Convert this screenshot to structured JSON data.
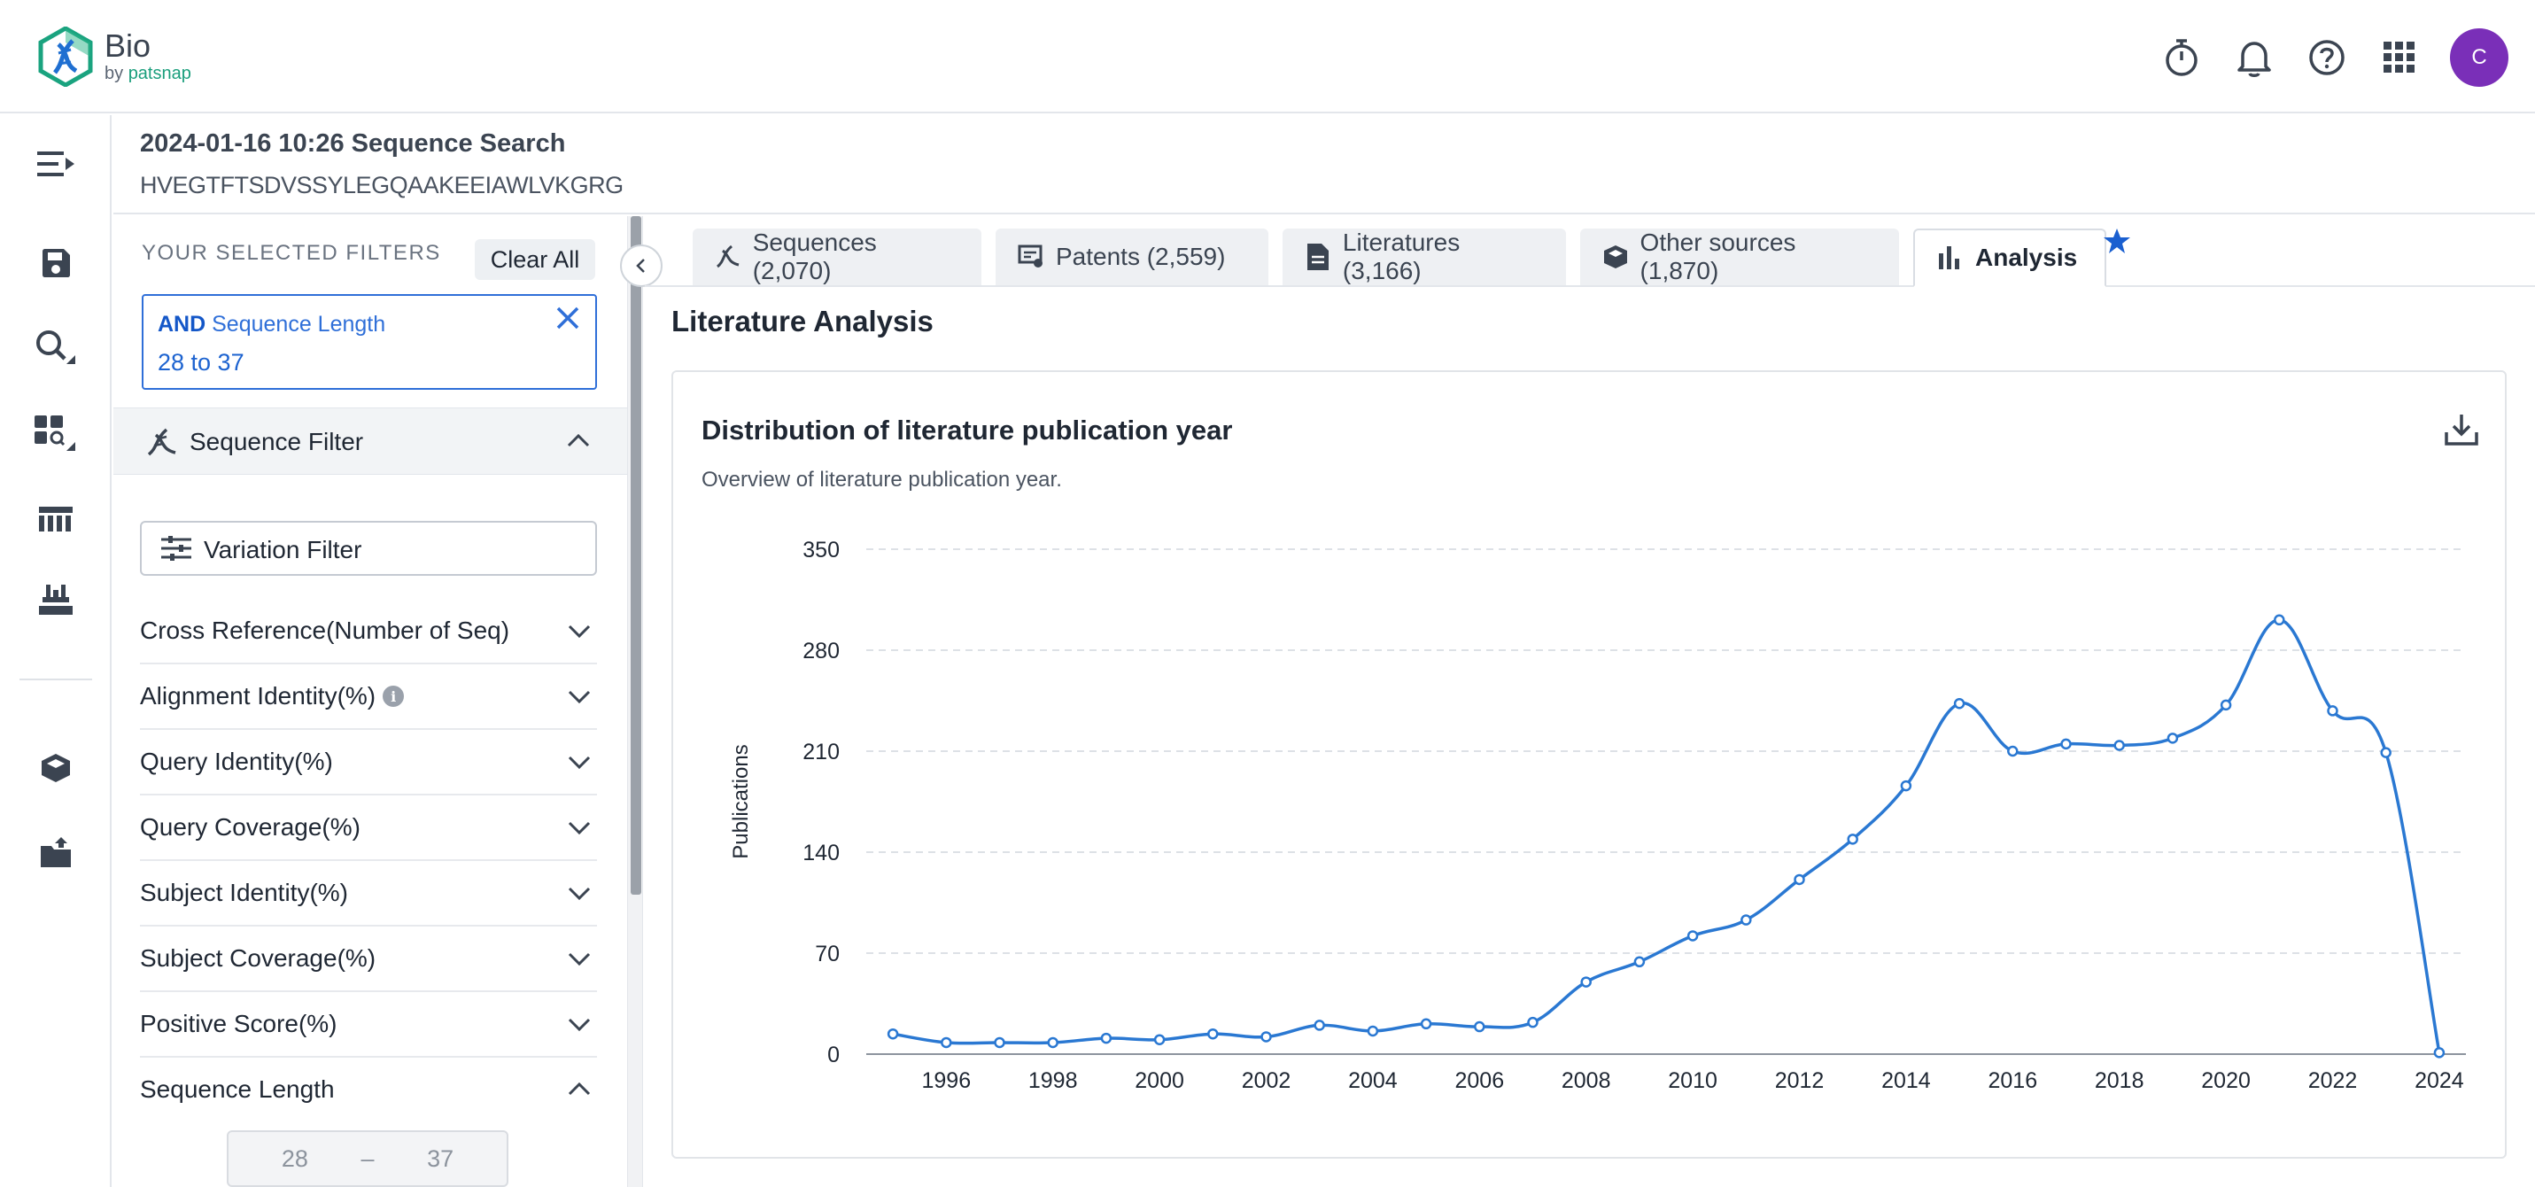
{
  "header": {
    "logo_title": "Bio",
    "logo_sub_prefix": "by",
    "logo_sub_brand": "patsnap",
    "icons": [
      "timer-icon",
      "bell-icon",
      "help-icon",
      "apps-grid-icon"
    ],
    "avatar_initial": "C",
    "avatar_color": "#7a2fb8"
  },
  "rail": {
    "icons": [
      "menu-collapse-icon",
      "save-icon",
      "search-icon",
      "dashboard-search-icon",
      "sequence-grid-icon",
      "lab-tray-icon",
      "cube-icon",
      "upload-folder-icon"
    ]
  },
  "search": {
    "title": "2024-01-16 10:26 Sequence Search",
    "sequence": "HVEGTFTSDVSSYLEGQAAKEEIAWLVKGRG"
  },
  "filters": {
    "heading": "YOUR SELECTED FILTERS",
    "clear_all": "Clear All",
    "chip": {
      "operator": "AND",
      "field": "Sequence Length",
      "value": "28 to 37"
    },
    "sequence_filter_label": "Sequence Filter",
    "variation_filter_label": "Variation Filter",
    "rows": [
      {
        "label": "Cross Reference(Number of Seq)",
        "expanded": false,
        "info": false
      },
      {
        "label": "Alignment Identity(%)",
        "expanded": false,
        "info": true
      },
      {
        "label": "Query Identity(%)",
        "expanded": false,
        "info": false
      },
      {
        "label": "Query Coverage(%)",
        "expanded": false,
        "info": false
      },
      {
        "label": "Subject Identity(%)",
        "expanded": false,
        "info": false
      },
      {
        "label": "Subject Coverage(%)",
        "expanded": false,
        "info": false
      },
      {
        "label": "Positive Score(%)",
        "expanded": false,
        "info": false
      },
      {
        "label": "Sequence Length",
        "expanded": true,
        "info": false
      }
    ],
    "range": {
      "min": "28",
      "sep": "–",
      "max": "37"
    }
  },
  "tabs": [
    {
      "label": "Sequences (2,070)",
      "icon": "dna-icon",
      "active": false
    },
    {
      "label": "Patents (2,559)",
      "icon": "patent-icon",
      "active": false
    },
    {
      "label": "Literatures (3,166)",
      "icon": "document-icon",
      "active": false
    },
    {
      "label": "Other sources (1,870)",
      "icon": "cube-icon",
      "active": false
    },
    {
      "label": "Analysis",
      "icon": "bar-chart-icon",
      "active": true
    }
  ],
  "analysis": {
    "section_title": "Literature Analysis",
    "card_title": "Distribution of literature publication year",
    "card_subtitle": "Overview of literature publication year."
  },
  "chart_data": {
    "type": "line",
    "title": "Distribution of literature publication year",
    "xlabel": "",
    "ylabel": "Publications",
    "x": [
      1995,
      1996,
      1997,
      1998,
      1999,
      2000,
      2001,
      2002,
      2003,
      2004,
      2005,
      2006,
      2007,
      2008,
      2009,
      2010,
      2011,
      2012,
      2013,
      2014,
      2015,
      2016,
      2017,
      2018,
      2019,
      2020,
      2021,
      2022,
      2023,
      2024
    ],
    "x_ticks": [
      "1996",
      "1998",
      "2000",
      "2002",
      "2004",
      "2006",
      "2008",
      "2010",
      "2012",
      "2014",
      "2016",
      "2018",
      "2020",
      "2022",
      "2024"
    ],
    "series": [
      {
        "values": [
          14,
          8,
          8,
          8,
          11,
          10,
          14,
          12,
          20,
          16,
          21,
          19,
          22,
          50,
          64,
          82,
          93,
          121,
          149,
          186,
          243,
          210,
          215,
          214,
          219,
          242,
          301,
          238,
          209,
          1
        ],
        "color": "#2a78d2"
      }
    ],
    "ylim": [
      0,
      350
    ],
    "y_ticks": [
      "0",
      "70",
      "140",
      "210",
      "280",
      "350"
    ],
    "grid": true,
    "legend": "none"
  }
}
